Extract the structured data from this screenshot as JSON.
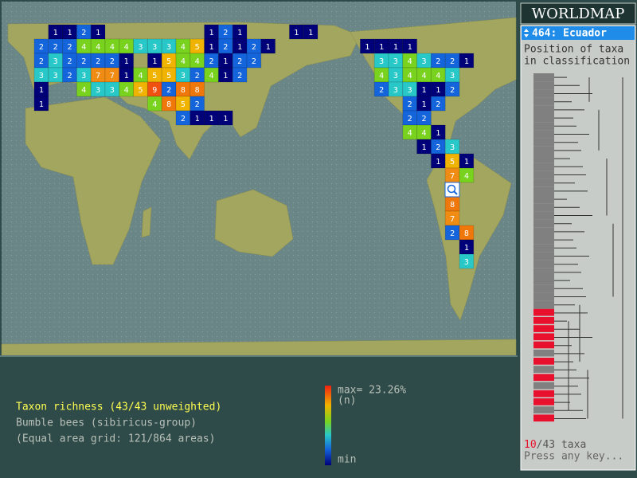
{
  "title": "WORLDMAP",
  "selected_area": "464: Ecuador",
  "panel_heading": [
    "Position of taxa",
    "in classification"
  ],
  "taxa_count": {
    "selected": "10",
    "rest": "/43 taxa"
  },
  "prompt": "Press any key...",
  "info": [
    "Taxon richness (43/43 unweighted)",
    "Bumble bees (sibiricus-group)",
    "(Equal area grid: 121/864 areas)"
  ],
  "legend": {
    "max": "max= 23.26%",
    "unit": "(n)",
    "min": "min"
  },
  "grid": {
    "palette": {
      "1": "#000078",
      "2": "#1464dc",
      "3": "#28c8c8",
      "4": "#78d21e",
      "5": "#f0b400",
      "7": "#f08c14",
      "8": "#f0780a",
      "9": "#f05010"
    },
    "rows": [
      [
        null,
        1,
        1,
        2,
        1,
        null,
        null,
        null,
        null,
        null,
        null,
        null,
        1,
        2,
        1,
        null,
        null,
        null,
        1,
        1
      ],
      [
        2,
        2,
        2,
        4,
        4,
        4,
        4,
        3,
        3,
        3,
        4,
        5,
        1,
        2,
        1,
        2,
        1,
        null,
        null,
        null,
        null,
        null,
        null,
        1,
        1,
        1,
        1
      ],
      [
        2,
        3,
        2,
        2,
        2,
        2,
        1,
        null,
        1,
        5,
        4,
        4,
        2,
        1,
        2,
        2,
        null,
        null,
        null,
        null,
        null,
        null,
        null,
        null,
        3,
        3,
        4,
        3,
        2,
        2,
        1
      ],
      [
        3,
        3,
        2,
        3,
        7,
        7,
        1,
        4,
        5,
        5,
        3,
        2,
        4,
        1,
        2,
        null,
        null,
        null,
        null,
        null,
        null,
        null,
        null,
        null,
        4,
        3,
        4,
        4,
        4,
        3
      ],
      [
        1,
        null,
        null,
        4,
        3,
        3,
        4,
        5,
        9,
        2,
        8,
        8,
        null,
        null,
        null,
        null,
        null,
        null,
        null,
        null,
        null,
        null,
        null,
        null,
        2,
        3,
        3,
        1,
        1,
        2
      ],
      [
        1,
        null,
        null,
        null,
        null,
        null,
        null,
        null,
        4,
        8,
        5,
        2,
        null,
        null,
        null,
        null,
        null,
        null,
        null,
        null,
        null,
        null,
        null,
        null,
        null,
        null,
        2,
        1,
        2
      ],
      [
        null,
        null,
        null,
        null,
        null,
        null,
        null,
        null,
        null,
        null,
        2,
        1,
        1,
        1,
        null,
        null,
        null,
        null,
        null,
        null,
        null,
        null,
        null,
        null,
        null,
        null,
        2,
        2
      ],
      [
        null,
        null,
        null,
        null,
        null,
        null,
        null,
        null,
        null,
        null,
        null,
        null,
        null,
        null,
        null,
        null,
        null,
        null,
        null,
        null,
        null,
        null,
        null,
        null,
        null,
        null,
        4,
        4,
        1
      ],
      [
        null,
        null,
        null,
        null,
        null,
        null,
        null,
        null,
        null,
        null,
        null,
        null,
        null,
        null,
        null,
        null,
        null,
        null,
        null,
        null,
        null,
        null,
        null,
        null,
        null,
        null,
        null,
        1,
        2,
        3
      ],
      [
        null,
        null,
        null,
        null,
        null,
        null,
        null,
        null,
        null,
        null,
        null,
        null,
        null,
        null,
        null,
        null,
        null,
        null,
        null,
        null,
        null,
        null,
        null,
        null,
        null,
        null,
        null,
        null,
        1,
        5,
        1
      ],
      [
        null,
        null,
        null,
        null,
        null,
        null,
        null,
        null,
        null,
        null,
        null,
        null,
        null,
        null,
        null,
        null,
        null,
        null,
        null,
        null,
        null,
        null,
        null,
        null,
        null,
        null,
        null,
        null,
        null,
        7,
        4
      ],
      [],
      [
        null,
        null,
        null,
        null,
        null,
        null,
        null,
        null,
        null,
        null,
        null,
        null,
        null,
        null,
        null,
        null,
        null,
        null,
        null,
        null,
        null,
        null,
        null,
        null,
        null,
        null,
        null,
        null,
        null,
        8
      ],
      [
        null,
        null,
        null,
        null,
        null,
        null,
        null,
        null,
        null,
        null,
        null,
        null,
        null,
        null,
        null,
        null,
        null,
        null,
        null,
        null,
        null,
        null,
        null,
        null,
        null,
        null,
        null,
        null,
        null,
        7
      ],
      [
        null,
        null,
        null,
        null,
        null,
        null,
        null,
        null,
        null,
        null,
        null,
        null,
        null,
        null,
        null,
        null,
        null,
        null,
        null,
        null,
        null,
        null,
        null,
        null,
        null,
        null,
        null,
        null,
        null,
        2,
        8
      ],
      [
        null,
        null,
        null,
        null,
        null,
        null,
        null,
        null,
        null,
        null,
        null,
        null,
        null,
        null,
        null,
        null,
        null,
        null,
        null,
        null,
        null,
        null,
        null,
        null,
        null,
        null,
        null,
        null,
        null,
        null,
        1
      ],
      [
        null,
        null,
        null,
        null,
        null,
        null,
        null,
        null,
        null,
        null,
        null,
        null,
        null,
        null,
        null,
        null,
        null,
        null,
        null,
        null,
        null,
        null,
        null,
        null,
        null,
        null,
        null,
        null,
        null,
        null,
        3
      ]
    ]
  }
}
